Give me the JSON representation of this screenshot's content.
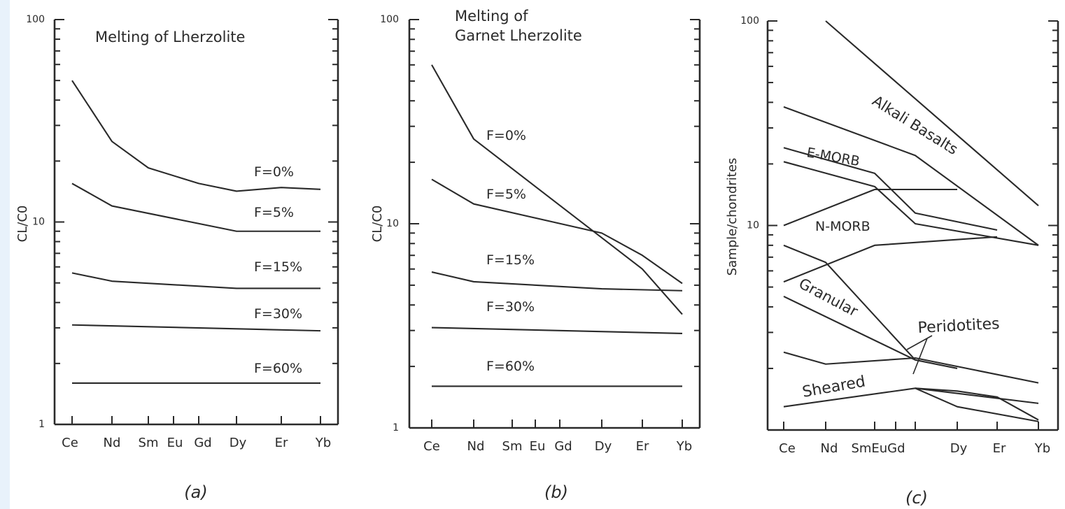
{
  "colors": {
    "ink": "#2a2a2a",
    "paper": "#ffffff",
    "edge": "#e8f2fb"
  },
  "chart_data": [
    {
      "type": "line",
      "panel_label": "(a)",
      "title": "Melting of Lherzolite",
      "xlabel": "",
      "ylabel": "CL/C0",
      "y_scale": "log",
      "ylim": [
        1,
        100
      ],
      "y_ticklabels": [
        "1",
        "10",
        "100"
      ],
      "categories": [
        "Ce",
        "Nd",
        "Sm",
        "Eu",
        "Gd",
        "Dy",
        "Er",
        "Yb"
      ],
      "x_ticklabels": [
        "Ce",
        "Nd",
        "Sm",
        "Eu",
        "Gd",
        "Dy",
        "Er",
        "Yb"
      ],
      "series": [
        {
          "name": "F=0%",
          "label": "F=0%",
          "points": [
            [
              "Ce",
              50
            ],
            [
              "Nd",
              25
            ],
            [
              "Sm",
              18.5
            ],
            [
              "Gd",
              15.5
            ],
            [
              "Dy",
              14.2
            ],
            [
              "Er",
              14.8
            ],
            [
              "Yb",
              14.5
            ]
          ]
        },
        {
          "name": "F=5%",
          "label": "F=5%",
          "points": [
            [
              "Ce",
              15.5
            ],
            [
              "Nd",
              12
            ],
            [
              "Dy",
              9
            ],
            [
              "Yb",
              9
            ]
          ]
        },
        {
          "name": "F=15%",
          "label": "F=15%",
          "points": [
            [
              "Ce",
              5.6
            ],
            [
              "Nd",
              5.1
            ],
            [
              "Dy",
              4.7
            ],
            [
              "Yb",
              4.7
            ]
          ]
        },
        {
          "name": "F=30%",
          "label": "F=30%",
          "points": [
            [
              "Ce",
              3.1
            ],
            [
              "Yb",
              2.9
            ]
          ]
        },
        {
          "name": "F=60%",
          "label": "F=60%",
          "points": [
            [
              "Ce",
              1.6
            ],
            [
              "Yb",
              1.6
            ]
          ]
        }
      ]
    },
    {
      "type": "line",
      "panel_label": "(b)",
      "title": "Melting of Garnet Lherzolite",
      "title_lines": [
        "Melting of",
        "Garnet Lherzolite"
      ],
      "xlabel": "",
      "ylabel": "CL/C0",
      "y_scale": "log",
      "ylim": [
        1,
        100
      ],
      "y_ticklabels": [
        "1",
        "10",
        "100"
      ],
      "categories": [
        "Ce",
        "Nd",
        "Sm",
        "Eu",
        "Gd",
        "Dy",
        "Er",
        "Yb"
      ],
      "x_ticklabels": [
        "Ce",
        "Nd",
        "Sm",
        "Eu",
        "Gd",
        "Dy",
        "Er",
        "Yb"
      ],
      "series": [
        {
          "name": "F=0%",
          "label": "F=0%",
          "points": [
            [
              "Ce",
              60
            ],
            [
              "Nd",
              26
            ],
            [
              "Er",
              6
            ],
            [
              "Yb",
              3.6
            ]
          ]
        },
        {
          "name": "F=5%",
          "label": "F=5%",
          "points": [
            [
              "Ce",
              16.5
            ],
            [
              "Nd",
              12.5
            ],
            [
              "Dy",
              9
            ],
            [
              "Er",
              7
            ],
            [
              "Yb",
              5.1
            ]
          ]
        },
        {
          "name": "F=15%",
          "label": "F=15%",
          "points": [
            [
              "Ce",
              5.8
            ],
            [
              "Nd",
              5.2
            ],
            [
              "Dy",
              4.8
            ],
            [
              "Yb",
              4.7
            ]
          ]
        },
        {
          "name": "F=30%",
          "label": "F=30%",
          "points": [
            [
              "Ce",
              3.1
            ],
            [
              "Yb",
              2.9
            ]
          ]
        },
        {
          "name": "F=60%",
          "label": "F=60%",
          "points": [
            [
              "Ce",
              1.6
            ],
            [
              "Yb",
              1.6
            ]
          ]
        }
      ]
    },
    {
      "type": "line",
      "panel_label": "(c)",
      "title": "",
      "xlabel": "",
      "ylabel": "Sample/chondrites",
      "y_scale": "log",
      "ylim": [
        1,
        100
      ],
      "y_ticklabels": [
        "10",
        "100"
      ],
      "categories": [
        "Ce",
        "Nd",
        "Sm",
        "Eu",
        "Gd",
        "Dy",
        "Er",
        "Yb"
      ],
      "x_ticklabels": [
        "Ce",
        "Nd",
        "SmEuGd",
        "Dy",
        "Er",
        "Yb"
      ],
      "series": [
        {
          "points": [
            [
              "Nd",
              100
            ],
            [
              "Yb",
              12.5
            ]
          ]
        },
        {
          "points": [
            [
              "Ce",
              38
            ],
            [
              "Gd",
              22
            ],
            [
              "Yb",
              8
            ]
          ]
        },
        {
          "points": [
            [
              "Ce",
              24
            ],
            [
              "Sm",
              18
            ],
            [
              "Gd",
              11.5
            ],
            [
              "Er",
              9.5
            ]
          ]
        },
        {
          "points": [
            [
              "Ce",
              20.5
            ],
            [
              "Sm",
              15.5
            ],
            [
              "Gd",
              10.2
            ],
            [
              "Yb",
              8
            ]
          ]
        },
        {
          "points": [
            [
              "Ce",
              10
            ],
            [
              "Sm",
              15
            ],
            [
              "Dy",
              15
            ]
          ]
        },
        {
          "points": [
            [
              "Ce",
              5.3
            ],
            [
              "Sm",
              8
            ],
            [
              "Er",
              8.8
            ]
          ]
        },
        {
          "points": [
            [
              "Ce",
              8
            ],
            [
              "Nd",
              6.6
            ],
            [
              "Gd",
              2.2
            ],
            [
              "Dy",
              2
            ]
          ]
        },
        {
          "points": [
            [
              "Ce",
              4.5
            ],
            [
              "Gd",
              2.2
            ]
          ]
        },
        {
          "points": [
            [
              "Ce",
              2.4
            ],
            [
              "Nd",
              2.1
            ],
            [
              "Gd",
              2.25
            ],
            [
              "Yb",
              1.7
            ]
          ]
        },
        {
          "points": [
            [
              "Ce",
              1.3
            ],
            [
              "Gd",
              1.6
            ],
            [
              "Yb",
              1.35
            ]
          ]
        },
        {
          "points": [
            [
              "Gd",
              1.6
            ],
            [
              "Dy",
              1.55
            ],
            [
              "Er",
              1.45
            ],
            [
              "Yb",
              1.12
            ]
          ]
        },
        {
          "points": [
            [
              "Gd",
              1.6
            ],
            [
              "Dy",
              1.3
            ],
            [
              "Yb",
              1.1
            ]
          ]
        }
      ],
      "annotations": [
        "Alkali Basalts",
        "E-MORB",
        "N-MORB",
        "Granular",
        "Peridotites",
        "Sheared"
      ]
    }
  ]
}
